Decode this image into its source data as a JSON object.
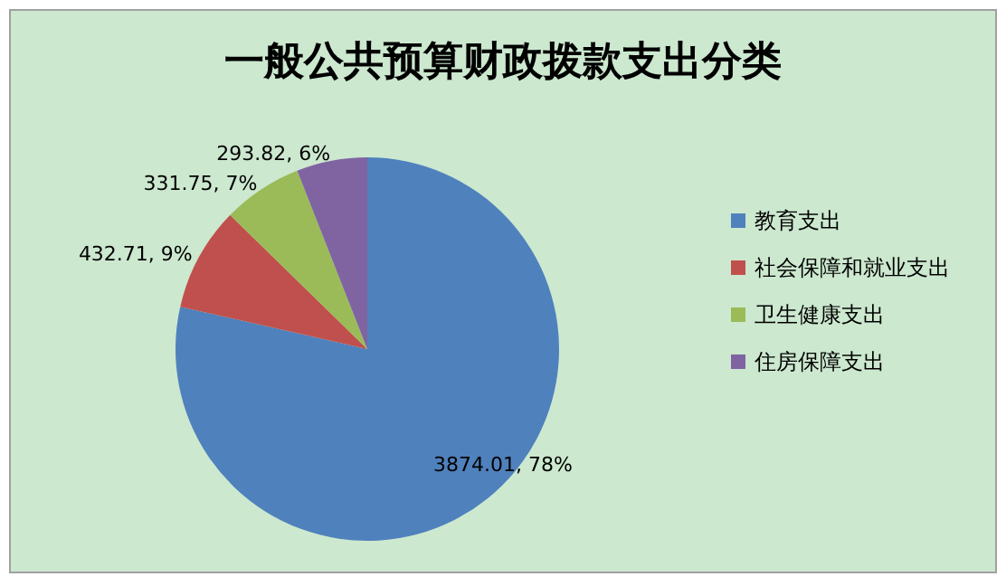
{
  "chart_data": {
    "type": "pie",
    "title": "一般公共预算财政拨款支出分类",
    "categories": [
      "教育支出",
      "社会保障和就业支出",
      "卫生健康支出",
      "住房保障支出"
    ],
    "values": [
      3874.01,
      432.71,
      331.75,
      293.82
    ],
    "colors": [
      "#4f81bd",
      "#c0504d",
      "#9bbb59",
      "#8064a2"
    ],
    "value_labels": [
      "3874.01, 78%",
      "432.71, 9%",
      "331.75, 7%",
      "293.82, 6%"
    ],
    "legend": "right"
  }
}
